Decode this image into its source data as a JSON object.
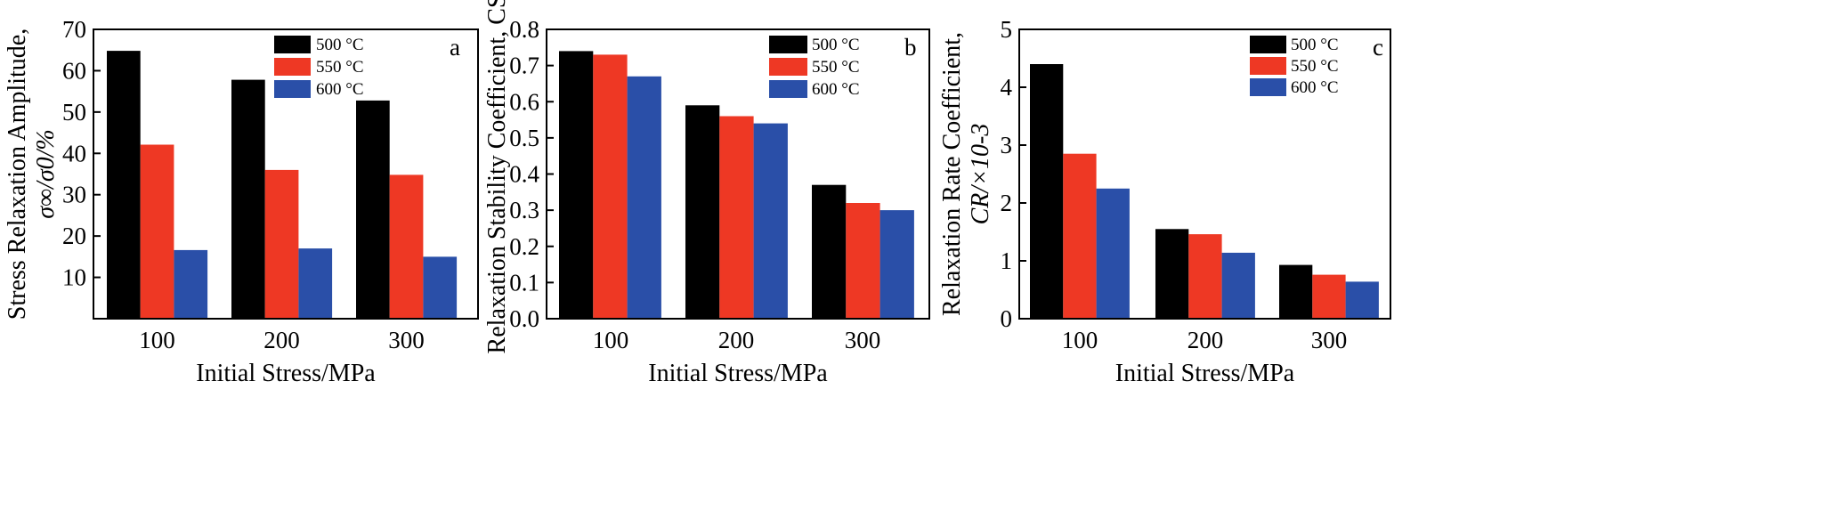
{
  "figure": {
    "panels_count": 3
  },
  "chart_data": [
    {
      "type": "bar",
      "panel_label": "a",
      "categories": [
        "100",
        "200",
        "300"
      ],
      "series": [
        {
          "name": "500 °C",
          "color": "#000000",
          "values": [
            64.8,
            57.8,
            52.8
          ]
        },
        {
          "name": "550 °C",
          "color": "#ee3824",
          "values": [
            42.1,
            36.0,
            34.8
          ]
        },
        {
          "name": "600 °C",
          "color": "#2a4fa8",
          "values": [
            16.6,
            17.0,
            15.0
          ]
        }
      ],
      "xlabel": "Initial Stress/MPa",
      "ylabel_line1": "Stress Relaxation Amplitude,",
      "ylabel_line2": "σ∞/σ0/%",
      "ylim": [
        0,
        70
      ],
      "yticks": [
        10,
        20,
        30,
        40,
        50,
        60,
        70
      ],
      "legend_position": "top-right"
    },
    {
      "type": "bar",
      "panel_label": "b",
      "categories": [
        "100",
        "200",
        "300"
      ],
      "series": [
        {
          "name": "500 °C",
          "color": "#000000",
          "values": [
            0.74,
            0.59,
            0.37
          ]
        },
        {
          "name": "550 °C",
          "color": "#ee3824",
          "values": [
            0.73,
            0.56,
            0.32
          ]
        },
        {
          "name": "600 °C",
          "color": "#2a4fa8",
          "values": [
            0.67,
            0.54,
            0.3
          ]
        }
      ],
      "xlabel": "Initial Stress/MPa",
      "ylabel_line1": "Relaxation Stability Coefficient, CS",
      "ylim": [
        0,
        0.8
      ],
      "yticks": [
        0.0,
        0.1,
        0.2,
        0.3,
        0.4,
        0.5,
        0.6,
        0.7,
        0.8
      ],
      "legend_position": "top-right"
    },
    {
      "type": "bar",
      "panel_label": "c",
      "categories": [
        "100",
        "200",
        "300"
      ],
      "series": [
        {
          "name": "500 °C",
          "color": "#000000",
          "values": [
            4.4,
            1.55,
            0.93
          ]
        },
        {
          "name": "550 °C",
          "color": "#ee3824",
          "values": [
            2.85,
            1.46,
            0.76
          ]
        },
        {
          "name": "600 °C",
          "color": "#2a4fa8",
          "values": [
            2.25,
            1.14,
            0.64
          ]
        }
      ],
      "xlabel": "Initial Stress/MPa",
      "ylabel_line1": "Relaxation Rate Coefficient,",
      "ylabel_line2": "CR/×10-3",
      "ylim": [
        0,
        5
      ],
      "yticks": [
        0,
        1,
        2,
        3,
        4,
        5
      ],
      "legend_position": "top-right"
    }
  ]
}
